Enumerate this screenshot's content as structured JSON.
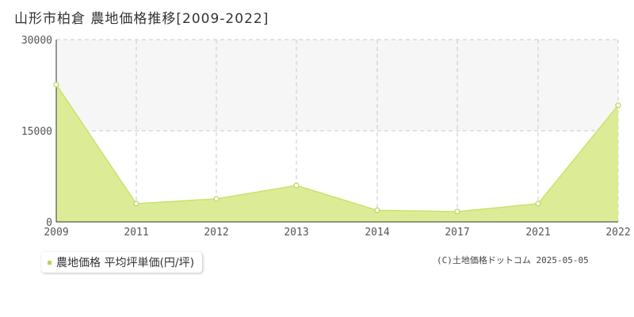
{
  "title": "山形市柏倉 農地価格推移[2009-2022]",
  "legend": {
    "label": "農地価格 平均坪単価(円/坪)"
  },
  "copyright": "(C)土地価格ドットコム 2025-05-05",
  "colors": {
    "fill": "#dcec96",
    "line": "#c8e36a",
    "marker": "#b8d65a",
    "grid": "#c8c8c8",
    "band": "#f6f6f6"
  },
  "chart_data": {
    "type": "area",
    "categories": [
      "2009",
      "2011",
      "2012",
      "2013",
      "2014",
      "2017",
      "2021",
      "2022"
    ],
    "series": [
      {
        "name": "農地価格 平均坪単価(円/坪)",
        "values": [
          22600,
          3000,
          3800,
          6000,
          1900,
          1700,
          3000,
          19200
        ]
      }
    ],
    "yticks": [
      0,
      15000,
      30000
    ],
    "ylim": [
      0,
      30000
    ],
    "grid": true,
    "legend_position": "bottom-left"
  }
}
